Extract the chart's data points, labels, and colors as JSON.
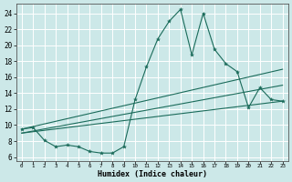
{
  "xlabel": "Humidex (Indice chaleur)",
  "ylabel": "",
  "bg_color": "#cce8e8",
  "line_color": "#1a6b5a",
  "grid_color": "#ffffff",
  "xlim": [
    -0.5,
    23.5
  ],
  "ylim": [
    5.5,
    25.2
  ],
  "xticks": [
    0,
    1,
    2,
    3,
    4,
    5,
    6,
    7,
    8,
    9,
    10,
    11,
    12,
    13,
    14,
    15,
    16,
    17,
    18,
    19,
    20,
    21,
    22,
    23
  ],
  "yticks": [
    6,
    8,
    10,
    12,
    14,
    16,
    18,
    20,
    22,
    24
  ],
  "series": [
    {
      "x": [
        0,
        1,
        2,
        3,
        4,
        5,
        6,
        7,
        8,
        9,
        10,
        11,
        12,
        13,
        14,
        15,
        16,
        17,
        18,
        19,
        20,
        21,
        22,
        23
      ],
      "y": [
        9.5,
        9.7,
        8.1,
        7.3,
        7.5,
        7.3,
        6.7,
        6.5,
        6.5,
        7.3,
        13.2,
        17.3,
        20.8,
        23.0,
        24.5,
        18.8,
        24.0,
        19.5,
        17.7,
        16.7,
        12.2,
        14.7,
        13.2,
        13.0
      ]
    },
    {
      "x": [
        0,
        23
      ],
      "y": [
        9.5,
        17.0
      ]
    },
    {
      "x": [
        0,
        23
      ],
      "y": [
        9.0,
        15.0
      ]
    },
    {
      "x": [
        0,
        23
      ],
      "y": [
        9.0,
        13.0
      ]
    }
  ]
}
